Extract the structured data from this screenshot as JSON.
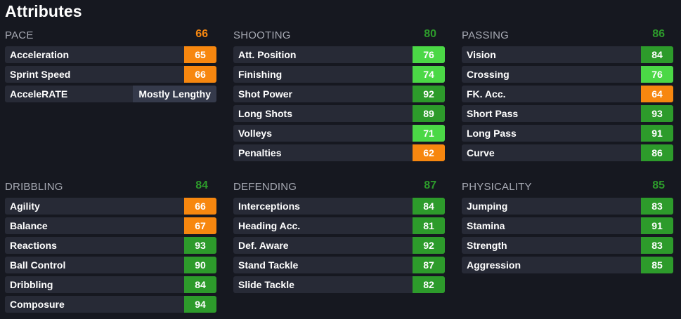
{
  "title": "Attributes",
  "colors": {
    "background": "#161820",
    "row_bg": "#272a36",
    "orange": "#f7870f",
    "green_light": "#4bd846",
    "green_dark": "#2d9b2b",
    "header_text": "#a7aab4"
  },
  "sections": [
    {
      "name": "PACE",
      "value": "66",
      "value_color": "orange",
      "stats": [
        {
          "label": "Acceleration",
          "value": "65",
          "color": "orange"
        },
        {
          "label": "Sprint Speed",
          "value": "66",
          "color": "orange"
        },
        {
          "label": "AcceleRATE",
          "value": "Mostly Lengthy",
          "color": "text"
        }
      ]
    },
    {
      "name": "SHOOTING",
      "value": "80",
      "value_color": "green_dark",
      "stats": [
        {
          "label": "Att. Position",
          "value": "76",
          "color": "green_light"
        },
        {
          "label": "Finishing",
          "value": "74",
          "color": "green_light"
        },
        {
          "label": "Shot Power",
          "value": "92",
          "color": "green_dark"
        },
        {
          "label": "Long Shots",
          "value": "89",
          "color": "green_dark"
        },
        {
          "label": "Volleys",
          "value": "71",
          "color": "green_light"
        },
        {
          "label": "Penalties",
          "value": "62",
          "color": "orange"
        }
      ]
    },
    {
      "name": "PASSING",
      "value": "86",
      "value_color": "green_dark",
      "stats": [
        {
          "label": "Vision",
          "value": "84",
          "color": "green_dark"
        },
        {
          "label": "Crossing",
          "value": "76",
          "color": "green_light"
        },
        {
          "label": "FK. Acc.",
          "value": "64",
          "color": "orange"
        },
        {
          "label": "Short Pass",
          "value": "93",
          "color": "green_dark"
        },
        {
          "label": "Long Pass",
          "value": "91",
          "color": "green_dark"
        },
        {
          "label": "Curve",
          "value": "86",
          "color": "green_dark"
        }
      ]
    },
    {
      "name": "DRIBBLING",
      "value": "84",
      "value_color": "green_dark",
      "stats": [
        {
          "label": "Agility",
          "value": "66",
          "color": "orange"
        },
        {
          "label": "Balance",
          "value": "67",
          "color": "orange"
        },
        {
          "label": "Reactions",
          "value": "93",
          "color": "green_dark"
        },
        {
          "label": "Ball Control",
          "value": "90",
          "color": "green_dark"
        },
        {
          "label": "Dribbling",
          "value": "84",
          "color": "green_dark"
        },
        {
          "label": "Composure",
          "value": "94",
          "color": "green_dark"
        }
      ]
    },
    {
      "name": "DEFENDING",
      "value": "87",
      "value_color": "green_dark",
      "stats": [
        {
          "label": "Interceptions",
          "value": "84",
          "color": "green_dark"
        },
        {
          "label": "Heading Acc.",
          "value": "81",
          "color": "green_dark"
        },
        {
          "label": "Def. Aware",
          "value": "92",
          "color": "green_dark"
        },
        {
          "label": "Stand Tackle",
          "value": "87",
          "color": "green_dark"
        },
        {
          "label": "Slide Tackle",
          "value": "82",
          "color": "green_dark"
        }
      ]
    },
    {
      "name": "PHYSICALITY",
      "value": "85",
      "value_color": "green_dark",
      "stats": [
        {
          "label": "Jumping",
          "value": "83",
          "color": "green_dark"
        },
        {
          "label": "Stamina",
          "value": "91",
          "color": "green_dark"
        },
        {
          "label": "Strength",
          "value": "83",
          "color": "green_dark"
        },
        {
          "label": "Aggression",
          "value": "85",
          "color": "green_dark"
        }
      ]
    }
  ]
}
